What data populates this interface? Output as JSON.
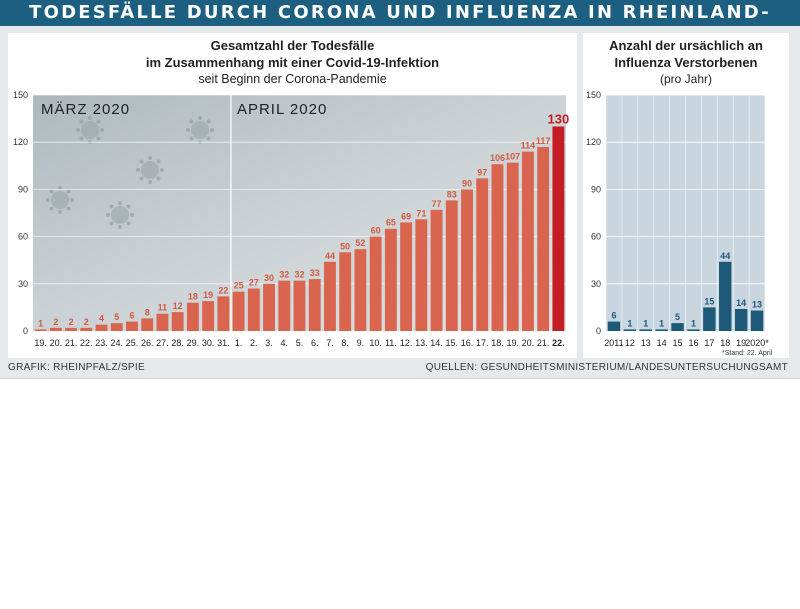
{
  "header": {
    "title": "TODESFÄLLE DURCH CORONA UND INFLUENZA IN RHEINLAND-PFALZ"
  },
  "colors": {
    "banner": "#1c5f80",
    "corona_bar": "#d9654e",
    "corona_last_bar": "#c41e24",
    "influenza_bar": "#1d5a7a",
    "label_red": "#d55a3f",
    "label_last_red": "#c41e24"
  },
  "credit": "GRAFIK: RHEINPFALZ/SPIE",
  "sources": "QUELLEN: GESUNDHEITSMINISTERIUM/LANDESUNTERSUCHUNGSAMT",
  "chart_data": [
    {
      "type": "bar",
      "title_line1": "Gesamtzahl der Todesfälle",
      "title_line2": "im Zusammenhang mit einer Covid-19-Infektion",
      "subtitle": "seit Beginn der Corona-Pandemie",
      "month_labels": [
        "MÄRZ 2020",
        "APRIL 2020"
      ],
      "categories": [
        "19.",
        "20.",
        "21.",
        "22.",
        "23.",
        "24.",
        "25.",
        "26.",
        "27.",
        "28.",
        "29.",
        "30.",
        "31.",
        "1.",
        "2.",
        "3.",
        "4.",
        "5.",
        "6.",
        "7.",
        "8.",
        "9.",
        "10.",
        "11.",
        "12.",
        "13.",
        "14.",
        "15.",
        "16.",
        "17.",
        "18.",
        "19.",
        "20.",
        "21.",
        "22."
      ],
      "values": [
        1,
        2,
        2,
        2,
        4,
        5,
        6,
        8,
        11,
        12,
        18,
        19,
        22,
        25,
        27,
        30,
        32,
        32,
        33,
        44,
        50,
        52,
        60,
        65,
        69,
        71,
        77,
        83,
        90,
        97,
        106,
        107,
        114,
        117,
        130
      ],
      "ylim": [
        0,
        150
      ],
      "yticks": [
        0,
        30,
        60,
        90,
        120,
        150
      ],
      "grid": true,
      "highlight_last": true
    },
    {
      "type": "bar",
      "title_line1": "Anzahl der ursächlich an",
      "title_line2": "Influenza Verstorbenen",
      "subtitle": "(pro Jahr)",
      "categories": [
        "2011",
        "12",
        "13",
        "14",
        "15",
        "16",
        "17",
        "18",
        "19",
        "2020*"
      ],
      "values": [
        6,
        1,
        1,
        1,
        5,
        1,
        15,
        44,
        14,
        13
      ],
      "ylim": [
        0,
        150
      ],
      "yticks": [
        0,
        30,
        60,
        90,
        120,
        150
      ],
      "grid": true,
      "footnote": "*Stand: 22. April"
    }
  ]
}
